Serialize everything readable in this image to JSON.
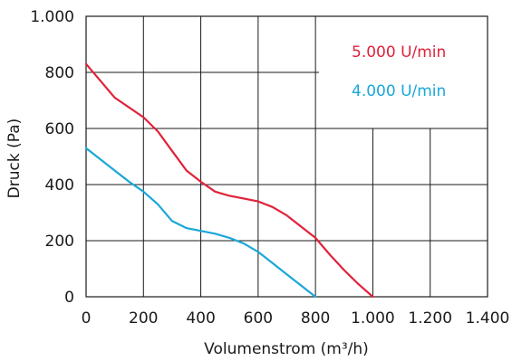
{
  "chart_data": {
    "type": "line",
    "xlabel": "Volumenstrom (m³/h)",
    "ylabel": "Druck (Pa)",
    "xlim": [
      0,
      1400
    ],
    "ylim": [
      0,
      1000
    ],
    "x_ticks": [
      0,
      200,
      400,
      600,
      800,
      1000,
      1200,
      1400
    ],
    "y_ticks": [
      0,
      200,
      400,
      600,
      800,
      1000
    ],
    "x_tick_labels": [
      "0",
      "200",
      "400",
      "600",
      "800",
      "1.000",
      "1.200",
      "1.400"
    ],
    "y_tick_labels": [
      "0",
      "200",
      "400",
      "600",
      "800",
      "1.000"
    ],
    "grid": true,
    "legend_position": "top-right, inside plot",
    "series": [
      {
        "name": "5.000 U/min",
        "color": "#e0223a",
        "points": [
          [
            0,
            830
          ],
          [
            50,
            770
          ],
          [
            100,
            710
          ],
          [
            200,
            640
          ],
          [
            250,
            590
          ],
          [
            300,
            520
          ],
          [
            350,
            450
          ],
          [
            400,
            410
          ],
          [
            450,
            375
          ],
          [
            500,
            360
          ],
          [
            600,
            340
          ],
          [
            650,
            320
          ],
          [
            700,
            290
          ],
          [
            750,
            250
          ],
          [
            800,
            210
          ],
          [
            850,
            150
          ],
          [
            900,
            95
          ],
          [
            950,
            45
          ],
          [
            1000,
            0
          ]
        ]
      },
      {
        "name": "4.000 U/min",
        "color": "#1aa7d9",
        "points": [
          [
            0,
            530
          ],
          [
            50,
            490
          ],
          [
            100,
            450
          ],
          [
            150,
            410
          ],
          [
            200,
            375
          ],
          [
            250,
            330
          ],
          [
            300,
            270
          ],
          [
            350,
            245
          ],
          [
            400,
            235
          ],
          [
            450,
            225
          ],
          [
            500,
            210
          ],
          [
            550,
            190
          ],
          [
            600,
            160
          ],
          [
            650,
            120
          ],
          [
            700,
            80
          ],
          [
            750,
            40
          ],
          [
            800,
            0
          ]
        ]
      }
    ]
  }
}
